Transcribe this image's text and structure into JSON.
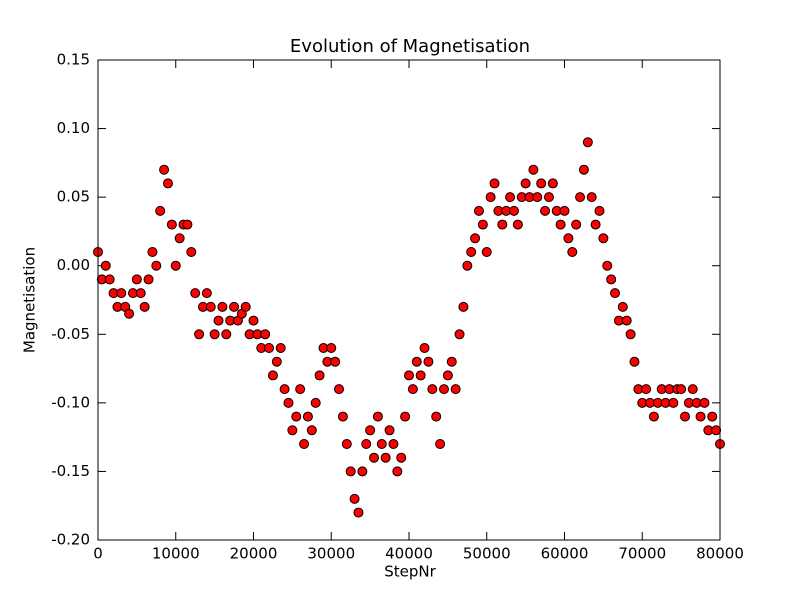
{
  "chart_data": {
    "type": "scatter",
    "title": "Evolution of Magnetisation",
    "x_label": "StepNr",
    "y_label": "Magnetisation",
    "x": [
      0,
      500,
      1000,
      1500,
      2000,
      2500,
      3000,
      3500,
      4000,
      4500,
      5000,
      5500,
      6000,
      6500,
      7000,
      7500,
      8000,
      8500,
      9000,
      9500,
      10000,
      10500,
      11000,
      11500,
      12000,
      12500,
      13000,
      13500,
      14000,
      14500,
      15000,
      15500,
      16000,
      16500,
      17000,
      17500,
      18000,
      18500,
      19000,
      19500,
      20000,
      20500,
      21000,
      21500,
      22000,
      22500,
      23000,
      23500,
      24000,
      24500,
      25000,
      25500,
      26000,
      26500,
      27000,
      27500,
      28000,
      28500,
      29000,
      29500,
      30000,
      30500,
      31000,
      31500,
      32000,
      32500,
      33000,
      33500,
      34000,
      34500,
      35000,
      35500,
      36000,
      36500,
      37000,
      37500,
      38000,
      38500,
      39000,
      39500,
      40000,
      40500,
      41000,
      41500,
      42000,
      42500,
      43000,
      43500,
      44000,
      44500,
      45000,
      45500,
      46000,
      46500,
      47000,
      47500,
      48000,
      48500,
      49000,
      49500,
      50000,
      50500,
      51000,
      51500,
      52000,
      52500,
      53000,
      53500,
      54000,
      54500,
      55000,
      55500,
      56000,
      56500,
      57000,
      57500,
      58000,
      58500,
      59000,
      59500,
      60000,
      60500,
      61000,
      61500,
      62000,
      62500,
      63000,
      63500,
      64000,
      64500,
      65000,
      65500,
      66000,
      66500,
      67000,
      67500,
      68000,
      68500,
      69000,
      69500,
      70000,
      70500,
      71000,
      71500,
      72000,
      72500,
      73000,
      73500,
      74000,
      74500,
      75000,
      75500,
      76000,
      76500,
      77000,
      77500,
      78000,
      78500,
      79000,
      79500,
      80000
    ],
    "values": [
      0.01,
      -0.01,
      0.0,
      -0.01,
      -0.02,
      -0.03,
      -0.02,
      -0.03,
      -0.035,
      -0.02,
      -0.01,
      -0.02,
      -0.03,
      -0.01,
      0.01,
      0.0,
      0.04,
      0.07,
      0.06,
      0.03,
      0.0,
      0.02,
      0.03,
      0.03,
      0.01,
      -0.02,
      -0.05,
      -0.03,
      -0.02,
      -0.03,
      -0.05,
      -0.04,
      -0.03,
      -0.05,
      -0.04,
      -0.03,
      -0.04,
      -0.035,
      -0.03,
      -0.05,
      -0.04,
      -0.05,
      -0.06,
      -0.05,
      -0.06,
      -0.08,
      -0.07,
      -0.06,
      -0.09,
      -0.1,
      -0.12,
      -0.11,
      -0.09,
      -0.13,
      -0.11,
      -0.12,
      -0.1,
      -0.08,
      -0.06,
      -0.07,
      -0.06,
      -0.07,
      -0.09,
      -0.11,
      -0.13,
      -0.15,
      -0.17,
      -0.18,
      -0.15,
      -0.13,
      -0.12,
      -0.14,
      -0.11,
      -0.13,
      -0.14,
      -0.12,
      -0.13,
      -0.15,
      -0.14,
      -0.11,
      -0.08,
      -0.09,
      -0.07,
      -0.08,
      -0.06,
      -0.07,
      -0.09,
      -0.11,
      -0.13,
      -0.09,
      -0.08,
      -0.07,
      -0.09,
      -0.05,
      -0.03,
      0.0,
      0.01,
      0.02,
      0.04,
      0.03,
      0.01,
      0.05,
      0.06,
      0.04,
      0.03,
      0.04,
      0.05,
      0.04,
      0.03,
      0.05,
      0.06,
      0.05,
      0.07,
      0.05,
      0.06,
      0.04,
      0.05,
      0.06,
      0.04,
      0.03,
      0.04,
      0.02,
      0.01,
      0.03,
      0.05,
      0.07,
      0.09,
      0.05,
      0.03,
      0.04,
      0.02,
      0.0,
      -0.01,
      -0.02,
      -0.04,
      -0.03,
      -0.04,
      -0.05,
      -0.07,
      -0.09,
      -0.1,
      -0.09,
      -0.1,
      -0.11,
      -0.1,
      -0.09,
      -0.1,
      -0.09,
      -0.1,
      -0.09,
      -0.09,
      -0.11,
      -0.1,
      -0.09,
      -0.1,
      -0.11,
      -0.1,
      -0.12,
      -0.11,
      -0.12,
      -0.13
    ],
    "color": "#ff0000",
    "edgecolor": "#000000",
    "xlim": [
      0,
      80000
    ],
    "xticks": [
      0,
      10000,
      20000,
      30000,
      40000,
      50000,
      60000,
      70000,
      80000
    ],
    "ylim": [
      -0.2,
      0.15
    ],
    "yticks": [
      {
        "value": -0.2,
        "label": "-0.20"
      },
      -0.15,
      {
        "value": -0.1,
        "label": "-0.10"
      },
      -0.05,
      {
        "value": 0,
        "label": "0.00"
      },
      0.05,
      {
        "value": 0.1,
        "label": "0.10"
      },
      0.15
    ],
    "grid": false
  }
}
